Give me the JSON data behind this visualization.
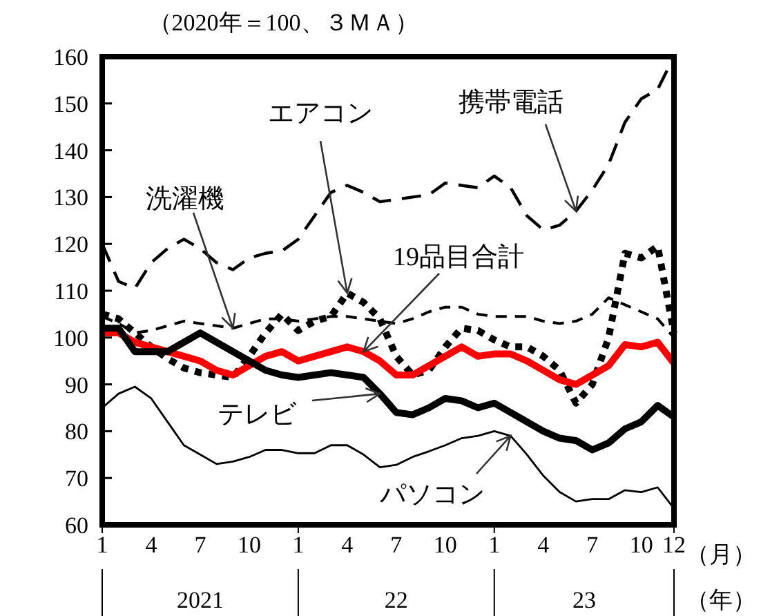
{
  "chart_data": {
    "type": "line",
    "ylabel": "（2020年＝100、３ＭＡ）",
    "xlabel": "（月）",
    "annotations": [
      "2021",
      "22",
      "23",
      "（年）"
    ],
    "categories": [
      "1",
      null,
      null,
      "4",
      null,
      null,
      "7",
      null,
      null,
      "10",
      null,
      null,
      "1",
      null,
      null,
      "4",
      null,
      null,
      "7",
      null,
      null,
      "10",
      null,
      null,
      "1",
      null,
      null,
      "4",
      null,
      null,
      "7",
      null,
      null,
      "10",
      null,
      "12"
    ],
    "ylim": [
      60,
      160
    ],
    "yticks": [
      60,
      70,
      80,
      90,
      100,
      110,
      120,
      130,
      140,
      150,
      160
    ],
    "grid": false,
    "legend": false,
    "marker": "none",
    "series": [
      {
        "name": "携帯電話",
        "color": "#000000",
        "line_style": "dashed",
        "values": [
          120,
          112,
          110.5,
          116,
          119,
          121,
          119,
          116,
          114.5,
          117,
          118,
          118.5,
          121,
          126,
          131,
          132.5,
          131,
          129,
          129.5,
          130,
          130.5,
          133,
          132.5,
          132,
          134.5,
          132,
          126,
          123,
          124,
          127,
          131.5,
          137,
          146,
          151,
          153,
          160
        ]
      },
      {
        "name": "エアコン",
        "color": "#000000",
        "line_style": "dotted",
        "values": [
          105,
          104,
          101,
          98,
          95.5,
          93.5,
          92.5,
          92,
          91.5,
          96,
          101,
          105,
          101.5,
          103.5,
          104.5,
          109.5,
          107.5,
          104,
          96,
          92,
          93,
          98,
          102,
          101.5,
          99.5,
          98,
          98,
          96,
          93,
          86,
          90,
          100,
          118,
          117,
          119.5,
          101
        ]
      },
      {
        "name": "洗濯機",
        "color": "#000000",
        "line_style": "dashed",
        "values": [
          104.5,
          103,
          101,
          101.5,
          102.5,
          103.5,
          103,
          102.5,
          102,
          103,
          104,
          104,
          103.5,
          104,
          104.5,
          104.5,
          104,
          103.5,
          103,
          104,
          105.5,
          106.5,
          106.5,
          105,
          104.5,
          104.5,
          104.5,
          103.5,
          103,
          103.5,
          105,
          108.5,
          107,
          105.5,
          104,
          100
        ]
      },
      {
        "name": "19品目合計",
        "color": "#ff0000",
        "line_style": "solid",
        "values": [
          101,
          101,
          99,
          98,
          97,
          96,
          95,
          93,
          92,
          94,
          96,
          97,
          95,
          96,
          97,
          98,
          97,
          95,
          92,
          92,
          94,
          96,
          98,
          96,
          96.5,
          96.5,
          95,
          93,
          91,
          90,
          92,
          94,
          98.5,
          98,
          99,
          94.5
        ]
      },
      {
        "name": "テレビ",
        "color": "#000000",
        "line_style": "solid",
        "values": [
          102,
          102,
          97,
          97,
          97,
          99,
          101,
          99,
          97,
          95,
          93,
          92,
          91.5,
          92,
          92.5,
          92,
          91.5,
          88,
          84,
          83.5,
          85,
          87,
          86.5,
          85,
          86,
          84,
          82,
          80,
          78.5,
          78,
          76,
          77.5,
          80.5,
          82,
          85.5,
          83
        ]
      },
      {
        "name": "パソコン",
        "color": "#000000",
        "line_style": "solid",
        "values": [
          85,
          88,
          89.5,
          87,
          82,
          77,
          75,
          73,
          73.5,
          74.5,
          76,
          76,
          75.3,
          75.3,
          77,
          77,
          75,
          72.3,
          72.8,
          74.5,
          75.7,
          77,
          78.5,
          79,
          80,
          79,
          75,
          70.5,
          67,
          65,
          65.5,
          65.5,
          67.4,
          67,
          68,
          63.5
        ]
      }
    ]
  }
}
